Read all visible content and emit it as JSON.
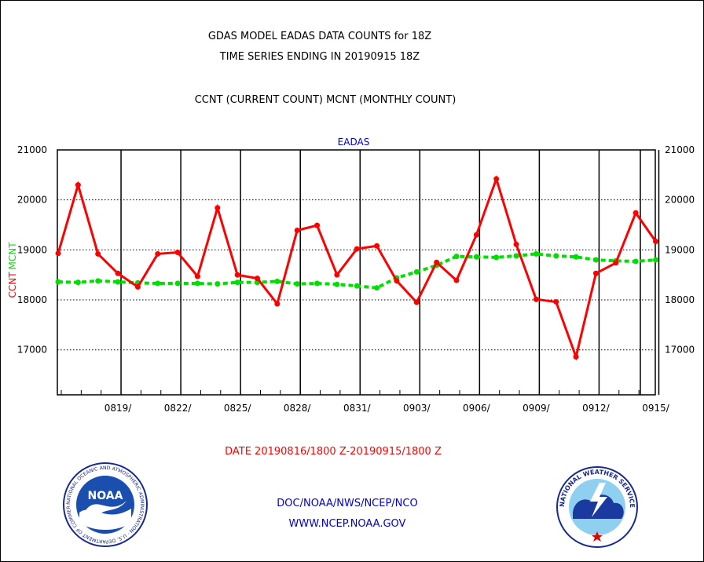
{
  "header": {
    "line1": "GDAS MODEL EADAS DATA COUNTS for 18Z",
    "line2": "TIME SERIES ENDING IN 20190915 18Z",
    "line3": "CCNT (CURRENT COUNT) MCNT (MONTHLY COUNT)"
  },
  "colors": {
    "ccnt": "#ff0000",
    "mcnt": "#00e000",
    "plot_title": "#0000cc",
    "footer": "#0000cc",
    "date_range": "#ff0000"
  },
  "footer": {
    "org": "DOC/NOAA/NWS/NCEP/NCO",
    "url": "WWW.NCEP.NOAA.GOV"
  },
  "logos": {
    "left": {
      "name": "noaa-logo",
      "text": "NOAA",
      "ring_text": "NATIONAL OCEANIC AND ATMOSPHERIC ADMINISTRATION · U.S. DEPARTMENT OF COMMERCE"
    },
    "right": {
      "name": "nws-logo",
      "ring_text": "NATIONAL WEATHER SERVICE"
    }
  },
  "chart_data": {
    "type": "line",
    "title": "EADAS",
    "xlabel": "DATE 20190816/1800 Z-20190915/1800 Z",
    "ylabel": [
      "CCNT",
      "MCNT"
    ],
    "ylim": [
      16100,
      21000
    ],
    "yticks": [
      17000,
      18000,
      19000,
      20000,
      21000
    ],
    "grid": true,
    "x_tick_labels": [
      "0819/",
      "0822/",
      "0825/",
      "0828/",
      "0831/",
      "0903/",
      "0906/",
      "0909/",
      "0912/",
      "0915/"
    ],
    "x_tick_days": [
      3,
      6,
      9,
      12,
      15,
      18,
      21,
      24,
      27,
      30
    ],
    "x_days": [
      0,
      1,
      2,
      3,
      4,
      5,
      6,
      7,
      8,
      9,
      10,
      11,
      12,
      13,
      14,
      15,
      16,
      17,
      18,
      19,
      20,
      21,
      22,
      23,
      24,
      25,
      26,
      27,
      28,
      29,
      30
    ],
    "series": [
      {
        "name": "CCNT",
        "values": [
          18930,
          20300,
          18920,
          18530,
          18260,
          18920,
          18950,
          18470,
          19840,
          18500,
          18430,
          17920,
          19390,
          19490,
          18500,
          19020,
          19080,
          18380,
          17950,
          18750,
          18390,
          19300,
          20420,
          19110,
          18010,
          17960,
          16860,
          18530,
          18740,
          19740,
          19170
        ]
      },
      {
        "name": "MCNT",
        "values": [
          18360,
          18350,
          18380,
          18360,
          18340,
          18330,
          18330,
          18330,
          18320,
          18350,
          18350,
          18370,
          18320,
          18330,
          18310,
          18280,
          18240,
          18440,
          18560,
          18690,
          18870,
          18860,
          18850,
          18880,
          18920,
          18880,
          18860,
          18800,
          18780,
          18770,
          18800
        ]
      }
    ]
  }
}
